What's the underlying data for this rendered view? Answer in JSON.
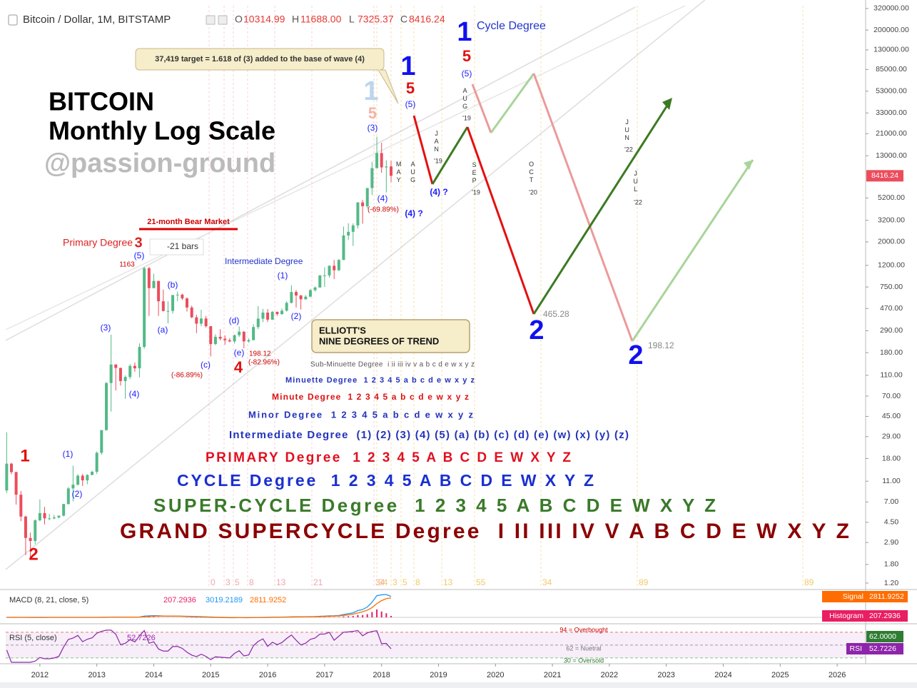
{
  "header": {
    "symbol": "Bitcoin / Dollar, 1M, BITSTAMP",
    "ohlc": [
      {
        "key": "O",
        "value": "10314.99"
      },
      {
        "key": "H",
        "value": "11688.00"
      },
      {
        "key": "L",
        "value": "7325.37"
      },
      {
        "key": "C",
        "value": "8416.24"
      }
    ],
    "last_price": "8416.24"
  },
  "chart_data": {
    "type": "candlestick",
    "log_scale": true,
    "grid": false,
    "up_color": "#53b987",
    "down_color": "#eb4d5c",
    "x": [
      2011.417,
      2011.5,
      2011.583,
      2011.667,
      2011.75,
      2011.833,
      2011.917,
      2012,
      2012.083,
      2012.167,
      2012.25,
      2012.333,
      2012.417,
      2012.5,
      2012.583,
      2012.667,
      2012.75,
      2012.833,
      2012.917,
      2013,
      2013.083,
      2013.167,
      2013.25,
      2013.333,
      2013.417,
      2013.5,
      2013.583,
      2013.667,
      2013.75,
      2013.833,
      2013.917,
      2014,
      2014.083,
      2014.167,
      2014.25,
      2014.333,
      2014.417,
      2014.5,
      2014.583,
      2014.667,
      2014.75,
      2014.833,
      2014.917,
      2015,
      2015.083,
      2015.167,
      2015.25,
      2015.333,
      2015.417,
      2015.5,
      2015.583,
      2015.667,
      2015.75,
      2015.833,
      2015.917,
      2016,
      2016.083,
      2016.167,
      2016.25,
      2016.333,
      2016.417,
      2016.5,
      2016.583,
      2016.667,
      2016.75,
      2016.833,
      2016.917,
      2017,
      2017.083,
      2017.167,
      2017.25,
      2017.333,
      2017.417,
      2017.5,
      2017.583,
      2017.667,
      2017.75,
      2017.833,
      2017.917,
      2018,
      2018.083,
      2018.167
    ],
    "open": [
      9.0,
      16.1,
      13.4,
      8.2,
      5.1,
      3.2,
      3.0,
      4.7,
      5.5,
      4.9,
      4.9,
      5.0,
      5.2,
      6.7,
      9.4,
      10.2,
      12.4,
      11.2,
      12.6,
      13.5,
      20.4,
      33.4,
      93,
      139,
      129,
      97,
      106,
      135,
      128,
      204,
      1129,
      732,
      855,
      550,
      445,
      446,
      630,
      635,
      585,
      480,
      388,
      338,
      378,
      320,
      217,
      254,
      244,
      236,
      230,
      263,
      284,
      230,
      236,
      314,
      377,
      430,
      369,
      437,
      416,
      448,
      531,
      673,
      624,
      574,
      608,
      700,
      742,
      963,
      966,
      1190,
      1079,
      1350,
      2300,
      2490,
      2860,
      4720,
      4340,
      6440,
      9950,
      13800,
      10100,
      10314.99
    ],
    "high": [
      31.9,
      16.4,
      13.5,
      8.9,
      5.2,
      3.6,
      4.8,
      7.4,
      6.3,
      5.4,
      5.3,
      5.2,
      6.7,
      9.7,
      15.4,
      12.8,
      12.9,
      12.8,
      13.8,
      21,
      33.4,
      95,
      266,
      140,
      130,
      110,
      140,
      145,
      220,
      1163,
      1163,
      1000,
      860,
      710,
      550,
      630,
      680,
      650,
      600,
      500,
      410,
      457,
      400,
      320,
      268,
      300,
      262,
      247,
      267,
      318,
      286,
      245,
      334,
      495,
      466,
      465,
      445,
      440,
      470,
      550,
      780,
      700,
      630,
      630,
      720,
      760,
      975,
      1150,
      1200,
      1350,
      1380,
      2790,
      3000,
      2990,
      4740,
      4980,
      6470,
      11400,
      19666,
      17250,
      11790,
      11688
    ],
    "low": [
      8.5,
      12.8,
      6.6,
      4.6,
      2.2,
      2.0,
      2.8,
      4.6,
      4.3,
      4.7,
      4.8,
      4.9,
      5.1,
      6.6,
      7.1,
      10.0,
      9.9,
      10.3,
      12.5,
      12.9,
      19.6,
      33,
      50,
      79,
      88,
      66,
      101,
      119,
      105,
      196,
      400,
      730,
      400,
      440,
      340,
      420,
      550,
      565,
      440,
      380,
      275,
      320,
      310,
      166,
      212,
      235,
      214,
      225,
      220,
      253,
      198,
      224,
      235,
      300,
      350,
      350,
      365,
      400,
      410,
      440,
      525,
      480,
      460,
      570,
      600,
      680,
      740,
      750,
      920,
      890,
      1060,
      1350,
      2080,
      1830,
      2670,
      2970,
      4140,
      5550,
      9900,
      9000,
      5870,
      7325.37
    ],
    "close": [
      16.1,
      13.4,
      8.2,
      5.1,
      3.2,
      3.0,
      4.7,
      5.5,
      4.9,
      4.9,
      5.0,
      5.2,
      6.7,
      9.4,
      10.2,
      12.4,
      11.2,
      12.6,
      13.5,
      20.4,
      33.4,
      93,
      139,
      129,
      97,
      106,
      135,
      128,
      204,
      1129,
      732,
      855,
      550,
      445,
      446,
      630,
      635,
      585,
      480,
      388,
      338,
      378,
      320,
      217,
      254,
      244,
      236,
      230,
      263,
      284,
      230,
      236,
      314,
      377,
      430,
      369,
      437,
      416,
      448,
      531,
      673,
      624,
      574,
      608,
      700,
      742,
      963,
      966,
      1190,
      1079,
      1350,
      2300,
      2490,
      2860,
      4720,
      4340,
      6440,
      9950,
      13800,
      10100,
      10300,
      8416.24
    ],
    "xlim": [
      2011.4,
      2026.5
    ],
    "ylim": [
      1.06,
      356000
    ],
    "xticks": [
      2012,
      2013,
      2014,
      2015,
      2016,
      2017,
      2018,
      2019,
      2020,
      2021,
      2022,
      2023,
      2024,
      2025,
      2026
    ],
    "yticks": [
      {
        "value": 320000,
        "label": "320000.00"
      },
      {
        "value": 200000,
        "label": "200000.00"
      },
      {
        "value": 130000,
        "label": "130000.00"
      },
      {
        "value": 85000,
        "label": "85000.00"
      },
      {
        "value": 53000,
        "label": "53000.00"
      },
      {
        "value": 33000,
        "label": "33000.00"
      },
      {
        "value": 21000,
        "label": "21000.00"
      },
      {
        "value": 13000,
        "label": "13000.00"
      },
      {
        "value": 5200,
        "label": "5200.00"
      },
      {
        "value": 3200,
        "label": "3200.00"
      },
      {
        "value": 2000,
        "label": "2000.00"
      },
      {
        "value": 1200,
        "label": "1200.00"
      },
      {
        "value": 750,
        "label": "750.00"
      },
      {
        "value": 470,
        "label": "470.00"
      },
      {
        "value": 290,
        "label": "290.00"
      },
      {
        "value": 180,
        "label": "180.00"
      },
      {
        "value": 110,
        "label": "110.00"
      },
      {
        "value": 70,
        "label": "70.00"
      },
      {
        "value": 45,
        "label": "45.00"
      },
      {
        "value": 29,
        "label": "29.00"
      },
      {
        "value": 18,
        "label": "18.00"
      },
      {
        "value": 11,
        "label": "11.00"
      },
      {
        "value": 7,
        "label": "7.00"
      },
      {
        "value": 4.5,
        "label": "4.50"
      },
      {
        "value": 2.9,
        "label": "2.90"
      },
      {
        "value": 1.8,
        "label": "1.80"
      },
      {
        "value": 1.2,
        "label": "1.20"
      }
    ]
  },
  "annotations": [
    "BITCOIN",
    "Monthly Log Scale",
    "@passion-ground",
    "Cycle Degree",
    "37,419 target = 1.618 of (3) added to the base of wave (4)",
    "21-month Bear Market",
    "Primary Degree",
    "3",
    "-21 bars",
    "Intermediate Degree",
    "ELLIOTT'S",
    "NINE DEGREES OF TREND",
    "(1)",
    "(2)",
    "(3)",
    "(4)",
    "(5)",
    "(a)",
    "(b)",
    "(c)",
    "(d)",
    "(e)",
    "(1)",
    "(2)",
    "(3)",
    "(4)",
    "(5)",
    "(5)",
    "(4) ?",
    "(4) ?",
    "1",
    "2",
    "4",
    "5",
    "5",
    "1163",
    "198.12",
    "(-82.96%)",
    "(-86.89%)",
    "(-69.89%)",
    "1",
    "1",
    "2",
    "2",
    "1",
    "5",
    "465.28",
    "198.12",
    "MAY",
    "AUG",
    "JAN",
    "'19",
    "AUG",
    "'19",
    "SEP",
    "'19",
    "OCT",
    "'20",
    "JUN",
    "'22",
    "JUL",
    "'22"
  ],
  "degrees": [
    "Sub-Minuette Degree  i ii iii iv v a b c d e w x y z",
    "Minuette Degree  1 2 3 4 5 a b c d e w x y z",
    "Minute Degree  1 2 3 4 5 a b c d e w x y z",
    "Minor Degree  1 2 3 4 5 a b c d e w x y z",
    "Intermediate Degree  (1) (2) (3) (4) (5) (a) (b) (c) (d) (e) (w) (x) (y) (z)",
    "PRIMARY Degree  1 2 3 4 5 A B C D E W X Y Z",
    "CYCLE Degree  1 2 3 4 5 A B C D E W X Y Z",
    "SUPER-CYCLE Degree  1 2 3 4 5 A B C D E W X Y Z",
    "GRAND SUPERCYCLE Degree  I II III IV V A B C D E W X Y Z"
  ],
  "fib_time": {
    "pink": [
      0,
      3,
      5,
      8,
      13,
      21,
      34
    ],
    "gold": [
      34,
      3,
      5,
      8,
      13,
      55,
      34,
      89,
      89
    ]
  },
  "macd": {
    "title": "MACD (8, 21, close, 5)",
    "values": [
      "207.2936",
      "3019.2189",
      "2811.9252"
    ],
    "tags": [
      {
        "name": "Signal",
        "value": "2811.9252"
      },
      {
        "name": "Histogram",
        "value": "207.2936"
      }
    ]
  },
  "rsi": {
    "title": "RSI (5, close)",
    "value": "52.7226",
    "levels": [
      "94 = Overbought",
      "62 = Nuetral",
      "30 = Oversold"
    ],
    "tags": [
      {
        "name": "",
        "value": "62.0000"
      },
      {
        "name": "RSI",
        "value": "52.7226"
      }
    ]
  }
}
